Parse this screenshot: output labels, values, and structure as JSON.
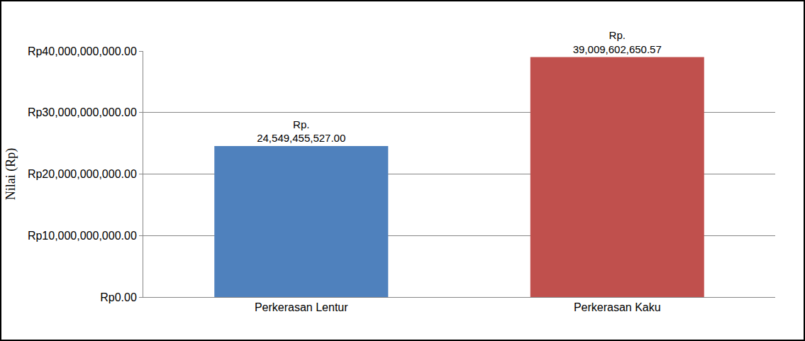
{
  "chart_data": {
    "type": "bar",
    "y_label": "Nilai (Rp)",
    "categories": [
      "Perkerasan Lentur",
      "Perkerasan Kaku"
    ],
    "values": [
      24549455527.0,
      39009602650.57
    ],
    "value_labels": [
      "Rp.\n24,549,455,527.00",
      "Rp.\n39,009,602,650.57"
    ],
    "colors": [
      "#4f81bd",
      "#c0504d"
    ],
    "ylim": [
      0,
      40000000000
    ],
    "yticks": [
      {
        "value": 0,
        "label": "Rp0.00"
      },
      {
        "value": 10000000000,
        "label": "Rp10,000,000,000.00"
      },
      {
        "value": 20000000000,
        "label": "Rp20,000,000,000.00"
      },
      {
        "value": 30000000000,
        "label": "Rp30,000,000,000.00"
      },
      {
        "value": 40000000000,
        "label": "Rp40,000,000,000.00"
      }
    ],
    "grid": true,
    "data_labels": true
  }
}
